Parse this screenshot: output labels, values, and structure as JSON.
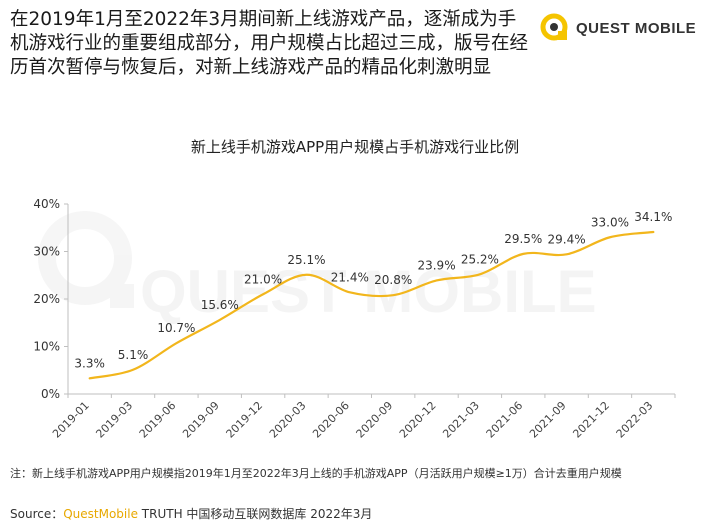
{
  "header": {
    "headline": "在2019年1月至2022年3月期间新上线游戏产品，逐渐成为手机游戏行业的重要组成部分，用户规模占比超过三成，版号在经历首次暂停与恢复后，对新上线游戏产品的精品化刺激明显",
    "logo_icon": "questmobile-logo-icon",
    "logo_text": "QUEST MOBILE"
  },
  "watermark": {
    "text": "QUEST MOBILE"
  },
  "chart_data": {
    "type": "line",
    "title": "新上线手机游戏APP用户规模占手机游戏行业比例",
    "categories": [
      "2019-01",
      "2019-03",
      "2019-06",
      "2019-09",
      "2019-12",
      "2020-03",
      "2020-06",
      "2020-09",
      "2020-12",
      "2021-03",
      "2021-06",
      "2021-09",
      "2021-12",
      "2022-03"
    ],
    "series": [
      {
        "values": [
          3.3,
          5.1,
          10.7,
          15.6,
          21.0,
          25.1,
          21.4,
          20.8,
          23.9,
          25.2,
          29.5,
          29.4,
          33.0,
          34.1
        ]
      }
    ],
    "data_labels": [
      "3.3%",
      "5.1%",
      "10.7%",
      "15.6%",
      "21.0%",
      "25.1%",
      "21.4%",
      "20.8%",
      "23.9%",
      "25.2%",
      "29.5%",
      "29.4%",
      "33.0%",
      "34.1%"
    ],
    "yticks": [
      0,
      10,
      20,
      30,
      40
    ],
    "ytick_labels": [
      "0%",
      "10%",
      "20%",
      "30%",
      "40%"
    ],
    "ylim": [
      0,
      40
    ],
    "grid": false,
    "line_color": "#f2b61c",
    "axis_color": "#bfbfbf"
  },
  "footer": {
    "note": "注：新上线手机游戏APP用户规模指2019年1月至2022年3月上线的手机游戏APP（月活跃用户规模≥1万）合计去重用户规模",
    "source_prefix": "Source：",
    "source_brand": "QuestMobile",
    "source_rest": " TRUTH 中国移动互联网数据库 2022年3月"
  }
}
